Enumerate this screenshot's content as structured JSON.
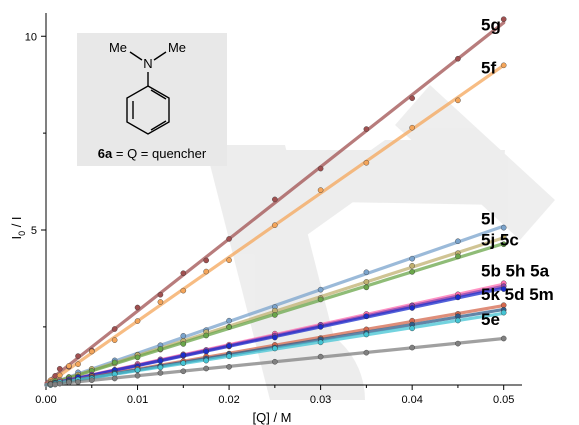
{
  "chart_data": {
    "type": "scatter",
    "xlabel": "[Q] / M",
    "ylabel_main": "I",
    "ylabel_sub": "0",
    "ylabel_tail": " / I",
    "xlim": [
      0,
      0.052
    ],
    "ylim": [
      1,
      10.6
    ],
    "x_ticks": [
      "0.00",
      "0.01",
      "0.02",
      "0.03",
      "0.04",
      "0.05"
    ],
    "y_ticks": [
      "5",
      "10"
    ],
    "x": [
      0.0005,
      0.001,
      0.0015,
      0.0025,
      0.0035,
      0.005,
      0.0075,
      0.01,
      0.0125,
      0.015,
      0.0175,
      0.02,
      0.025,
      0.03,
      0.035,
      0.04,
      0.045,
      0.05
    ],
    "series": [
      {
        "color": "#a05050",
        "slope": 186,
        "intercept": 1.05
      },
      {
        "color": "#f4a55a",
        "slope": 165,
        "intercept": 1.0
      },
      {
        "color": "#7aa3cc",
        "slope": 82,
        "intercept": 1.0
      },
      {
        "color": "#c0b070",
        "slope": 76,
        "intercept": 1.0
      },
      {
        "color": "#6aa64a",
        "slope": 73,
        "intercept": 1.0
      },
      {
        "color": "#ff6fb0",
        "slope": 52,
        "intercept": 1.0
      },
      {
        "color": "#8e44ad",
        "slope": 51,
        "intercept": 1.0
      },
      {
        "color": "#1a2ecc",
        "slope": 50,
        "intercept": 1.0
      },
      {
        "color": "#d4684e",
        "slope": 41,
        "intercept": 1.0
      },
      {
        "color": "#2e5c8a",
        "slope": 39,
        "intercept": 1.0
      },
      {
        "color": "#44c4d4",
        "slope": 37,
        "intercept": 1.0
      },
      {
        "color": "#808080",
        "slope": 24,
        "intercept": 1.0
      }
    ],
    "labels": [
      {
        "text": "5g",
        "y": 10.3
      },
      {
        "text": "5f",
        "y": 9.2
      },
      {
        "text": "5l",
        "y": 5.3
      },
      {
        "text": "5j 5c",
        "y": 4.75
      },
      {
        "text": "5b 5h 5a",
        "y": 3.95
      },
      {
        "text": "5k 5d 5m",
        "y": 3.35
      },
      {
        "text": "5e",
        "y": 2.7
      }
    ],
    "inset": {
      "top_label": "Me",
      "top_label_2": "Me",
      "atom": "N",
      "caption_bold": "6a",
      "caption_rest": " = Q = quencher"
    }
  }
}
